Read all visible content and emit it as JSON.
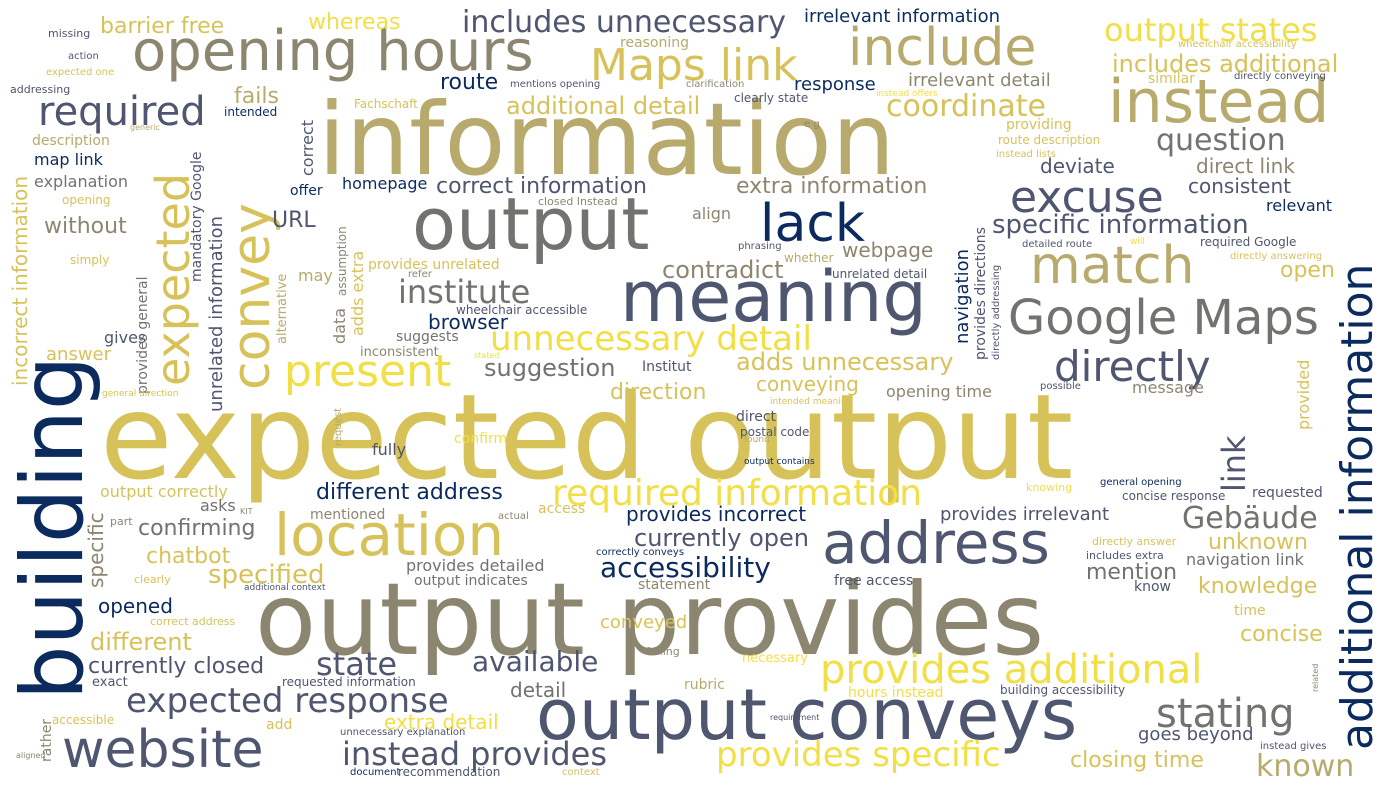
{
  "colors": {
    "background": "#ffffff",
    "gold": "#d7c25a",
    "khaki": "#b8a96c",
    "olive_gray": "#8c8670",
    "gray": "#74726e",
    "slate": "#4f5670",
    "navy": "#0b2a5e",
    "yellow": "#f2df45"
  },
  "words": {
    "w_expected_output": "expected output",
    "w_output_provides": "output provides",
    "w_information": "information",
    "w_building": "building",
    "w_output_conveys": "output conveys",
    "w_meaning": "meaning",
    "w_output": "output",
    "w_opening_hours": "opening hours",
    "w_instead": "instead",
    "w_include": "include",
    "w_convey": "convey",
    "w_address": "address",
    "w_location": "location",
    "w_website": "website",
    "w_additional_information": "additional information",
    "w_match": "match",
    "w_google_maps": "Google Maps",
    "w_maps_link": "Maps link",
    "w_expected": "expected",
    "w_lack": "lack",
    "w_excuse": "excuse",
    "w_present": "present",
    "w_required": "required",
    "w_directly": "directly",
    "w_provides_additional": "provides additional",
    "w_required_information": "required information",
    "w_stating": "stating",
    "w_expected_response": "expected response",
    "w_provides_specific": "provides specific",
    "w_output_states": "output states",
    "w_coordinate": "coordinate",
    "w_unnecessary_detail": "unnecessary detail",
    "w_includes_unnecessary": "includes unnecessary",
    "w_instead_provides": "instead provides",
    "w_institute": "institute",
    "w_question": "question",
    "w_specific_information": "specific information",
    "w_state": "state",
    "w_gebaude": "Gebäude",
    "w_known": "known",
    "w_accessibility": "accessibility",
    "w_link": "link",
    "w_available": "available",
    "w_contradict": "contradict",
    "w_adds_unnecessary": "adds unnecessary",
    "w_additional_detail": "additional detail",
    "w_includes_additional": "includes additional",
    "w_specified": "specified",
    "w_different_address": "different address",
    "w_currently_open": "currently open",
    "w_suggestion": "suggestion",
    "w_correct_information": "correct information",
    "w_extra_information": "extra information",
    "w_currently_closed": "currently closed",
    "w_different": "different",
    "w_closing_time": "closing time",
    "w_barrier_free": "barrier free",
    "w_whereas": "whereas",
    "w_irrelevant_information": "irrelevant information",
    "w_route": "route",
    "w_response": "response",
    "w_irrelevant_detail": "irrelevant detail",
    "w_without": "without",
    "w_direction": "direction",
    "w_provides_incorrect": "provides incorrect",
    "w_provides_irrelevant": "provides irrelevant",
    "w_unknown": "unknown",
    "w_mention": "mention",
    "w_knowledge": "knowledge",
    "w_concise": "concise",
    "w_open": "open",
    "w_deviate": "deviate",
    "w_direct_link": "direct link",
    "w_consistent": "consistent",
    "w_relevant": "relevant",
    "w_webpage": "webpage",
    "w_browser": "browser",
    "w_conveying": "conveying",
    "w_confirming": "confirming",
    "w_chatbot": "chatbot",
    "w_opened": "opened",
    "w_detail": "detail",
    "w_url": "URL",
    "w_answer": "answer",
    "w_fails": "fails",
    "w_homepage": "homepage",
    "w_map_link": "map link",
    "w_explanation": "explanation",
    "w_description": "description",
    "w_output_correctly": "output correctly",
    "w_provides_detailed": "provides detailed",
    "w_navigation_link": "navigation link",
    "w_goes_beyond": "goes beyond",
    "w_conveyed": "conveyed",
    "w_extra_detail": "extra detail",
    "w_asks": "asks",
    "w_gives": "gives",
    "w_offer": "offer",
    "w_may": "may",
    "w_fully": "fully",
    "w_provides_unrelated": "provides unrelated",
    "w_opening_time": "opening time",
    "w_message": "message",
    "w_statement": "statement",
    "w_free_access": "free access",
    "w_output_indicates": "output indicates",
    "w_align": "align",
    "w_confirm": "confirm",
    "w_suggests": "suggests",
    "w_inconsistent": "inconsistent",
    "w_institut": "Institut",
    "w_direct": "direct",
    "w_postal_code": "postal code",
    "w_required_google": "required Google",
    "w_detailed_route": "detailed route",
    "w_whether": "whether",
    "w_unrelated_detail": "unrelated detail",
    "w_wheelchair_accessible": "wheelchair accessible",
    "w_refer": "refer",
    "w_phrasing": "phrasing",
    "w_closed_instead": "closed Instead",
    "w_reasoning": "reasoning",
    "w_similar": "similar",
    "w_providing": "providing",
    "w_route_description": "route description",
    "w_instead_lists": "instead lists",
    "w_clarification": "clarification",
    "w_clearly_state": "clearly state",
    "w_mentions_opening": "mentions opening",
    "w_intended": "intended",
    "w_fachschaft": "Fachschaft",
    "w_wheelchair_accessibility": "wheelchair accessibility",
    "w_directly_conveying": "directly conveying",
    "w_instead_offers": "instead offers",
    "w_e_g": "e g",
    "w_missing": "missing",
    "w_action": "action",
    "w_expected_one": "expected one",
    "w_addressing": "addressing",
    "w_generic": "generic",
    "w_opening": "opening",
    "w_simply": "simply",
    "w_mandatory_google": "mandatory Google",
    "w_unrelated_information": "unrelated information",
    "w_provides_general": "provides general",
    "w_alternative": "alternative",
    "w_data": "data",
    "w_assumption": "assumption",
    "w_adds_extra": "adds extra",
    "w_correct": "correct",
    "w_navigation": "navigation",
    "w_provides_directions": "provides directions",
    "w_directly_addressing": "directly addressing",
    "w_will": "will",
    "w_directly_answering": "directly answering",
    "w_provided": "provided",
    "w_possible": "possible",
    "w_stated": "stated",
    "w_general_direction": "general direction",
    "w_intended_meaning": "intended meaning",
    "w_request": "request",
    "w_found": "found",
    "w_output_contains": "output contains",
    "w_general_opening": "general opening",
    "w_knowing": "knowing",
    "w_requested": "requested",
    "w_concise_response": "concise response",
    "w_directly_answer": "directly answer",
    "w_includes_extra": "includes extra",
    "w_actual": "actual",
    "w_access": "access",
    "w_mentioned": "mentioned",
    "w_kit": "KIT",
    "w_part": "part",
    "w_specific": "specific",
    "w_correctly_conveys": "correctly conveys",
    "w_clearly": "clearly",
    "w_additional_context": "additional context",
    "w_correct_address": "correct address",
    "w_know": "know",
    "w_time": "time",
    "w_failing": "failing",
    "w_necessary": "necessary",
    "w_exact": "exact",
    "w_requested_information": "requested information",
    "w_rubric": "rubric",
    "w_hours_instead": "hours instead",
    "w_building_accessibility": "building accessibility",
    "w_related": "related",
    "w_accessible": "accessible",
    "w_add": "add",
    "w_requirement": "requirement",
    "w_rather": "rather",
    "w_unnecessary_explanation": "unnecessary explanation",
    "w_aligned": "aligned",
    "w_document": "document",
    "w_recommendation": "recommendation",
    "w_context": "context",
    "w_instead_gives": "instead gives",
    "w_incorrect_information": "incorrect information"
  }
}
